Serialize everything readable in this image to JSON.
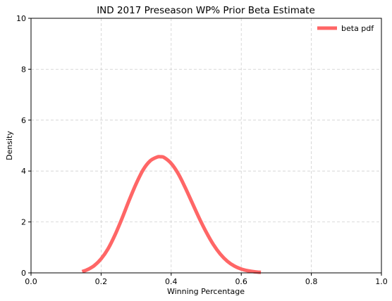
{
  "chart_data": {
    "type": "line",
    "title": "IND 2017 Preseason WP% Prior Beta Estimate",
    "xlabel": "Winning Percentage",
    "ylabel": "Density",
    "xlim": [
      0.0,
      1.0
    ],
    "ylim": [
      0,
      10
    ],
    "xticks": [
      0.0,
      0.2,
      0.4,
      0.6,
      0.8,
      1.0
    ],
    "xtick_labels": [
      "0.0",
      "0.2",
      "0.4",
      "0.6",
      "0.8",
      "1.0"
    ],
    "yticks": [
      0,
      2,
      4,
      6,
      8,
      10
    ],
    "ytick_labels": [
      "0",
      "2",
      "4",
      "6",
      "8",
      "10"
    ],
    "grid": true,
    "legend_position": "top-right",
    "series": [
      {
        "name": "beta pdf",
        "color": "#ff6666",
        "x": [
          0.146,
          0.16,
          0.18,
          0.2,
          0.22,
          0.24,
          0.26,
          0.28,
          0.3,
          0.32,
          0.34,
          0.36,
          0.37,
          0.38,
          0.4,
          0.42,
          0.44,
          0.46,
          0.48,
          0.5,
          0.52,
          0.54,
          0.56,
          0.58,
          0.6,
          0.62,
          0.64,
          0.656
        ],
        "y": [
          0.05,
          0.12,
          0.28,
          0.55,
          0.95,
          1.5,
          2.15,
          2.85,
          3.5,
          4.05,
          4.4,
          4.55,
          4.56,
          4.53,
          4.3,
          3.9,
          3.35,
          2.75,
          2.15,
          1.6,
          1.12,
          0.74,
          0.46,
          0.27,
          0.15,
          0.08,
          0.04,
          0.02
        ]
      }
    ]
  }
}
